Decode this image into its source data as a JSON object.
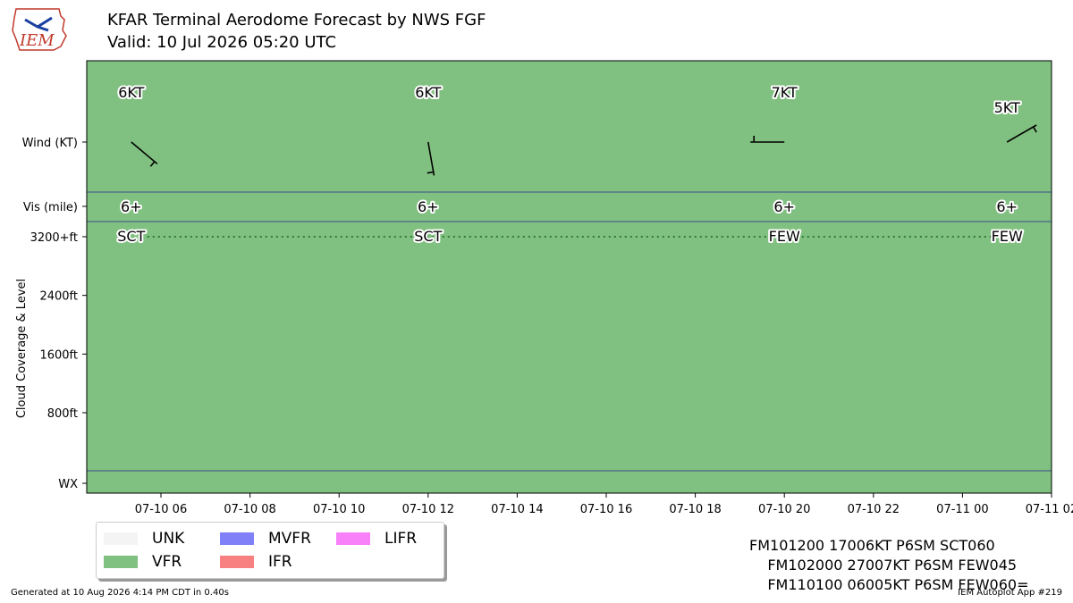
{
  "header": {
    "title": "KFAR Terminal Aerodome Forecast by NWS FGF",
    "subtitle": "Valid: 10 Jul 2026 05:20 UTC",
    "logo_text": "IEM"
  },
  "chart_data": {
    "type": "timeline",
    "x_start": "2026-07-10 04:20",
    "x_end": "2026-07-11 02:00",
    "x_ticks": [
      {
        "time": "2026-07-10 06:00",
        "label": "07-10 06"
      },
      {
        "time": "2026-07-10 08:00",
        "label": "07-10 08"
      },
      {
        "time": "2026-07-10 10:00",
        "label": "07-10 10"
      },
      {
        "time": "2026-07-10 12:00",
        "label": "07-10 12"
      },
      {
        "time": "2026-07-10 14:00",
        "label": "07-10 14"
      },
      {
        "time": "2026-07-10 16:00",
        "label": "07-10 16"
      },
      {
        "time": "2026-07-10 18:00",
        "label": "07-10 18"
      },
      {
        "time": "2026-07-10 20:00",
        "label": "07-10 20"
      },
      {
        "time": "2026-07-10 22:00",
        "label": "07-10 22"
      },
      {
        "time": "2026-07-11 00:00",
        "label": "07-11 00"
      },
      {
        "time": "2026-07-11 02:00",
        "label": "07-11 02"
      }
    ],
    "rows": {
      "wind_label": "Wind (KT)",
      "vis_label": "Vis (mile)",
      "cloud_axis_label": "Cloud Coverage & Level",
      "wx_label": "WX"
    },
    "cloud_ticks": [
      {
        "value": 3200,
        "label": "3200+ft"
      },
      {
        "value": 2400,
        "label": "2400ft"
      },
      {
        "value": 1600,
        "label": "1600ft"
      },
      {
        "value": 800,
        "label": "800ft"
      }
    ],
    "category": "VFR",
    "forecasts": [
      {
        "time": "2026-07-10 05:20",
        "wind_dir": 130,
        "wind_speed": 6,
        "wind_label": "6KT",
        "vis_label": "6+",
        "cloud_label": "SCT",
        "cloud_level": 3200
      },
      {
        "time": "2026-07-10 12:00",
        "wind_dir": 170,
        "wind_speed": 6,
        "wind_label": "6KT",
        "vis_label": "6+",
        "cloud_label": "SCT",
        "cloud_level": 3200
      },
      {
        "time": "2026-07-10 20:00",
        "wind_dir": 270,
        "wind_speed": 7,
        "wind_label": "7KT",
        "vis_label": "6+",
        "cloud_label": "FEW",
        "cloud_level": 3200
      },
      {
        "time": "2026-07-11 01:00",
        "wind_dir": 60,
        "wind_speed": 5,
        "wind_label": "5KT",
        "vis_label": "6+",
        "cloud_label": "FEW",
        "cloud_level": 3200
      }
    ],
    "legend": [
      {
        "label": "UNK",
        "color": "#f4f4f4"
      },
      {
        "label": "VFR",
        "color": "#80c080"
      },
      {
        "label": "MVFR",
        "color": "#8080f8"
      },
      {
        "label": "IFR",
        "color": "#f88080"
      },
      {
        "label": "LIFR",
        "color": "#f880f8"
      }
    ],
    "colors": {
      "vfr_fill": "#80c080",
      "row_separator": "#3a4f8a",
      "cloud_line": "#2e7d32"
    }
  },
  "taf_text": [
    "FM101200 17006KT P6SM SCT060",
    "    FM102000 27007KT P6SM FEW045",
    "    FM110100 06005KT P6SM FEW060="
  ],
  "footer": {
    "generated": "Generated at 10 Aug 2026 4:14 PM CDT in 0.40s",
    "app": "IEM Autoplot App #219"
  }
}
